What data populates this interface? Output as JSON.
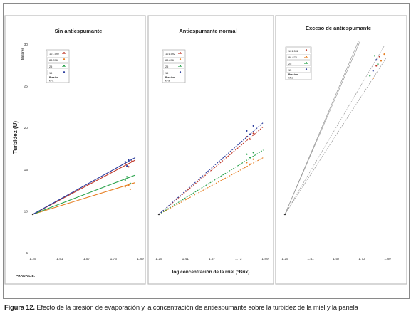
{
  "caption": {
    "label": "Figura 12.",
    "text": "Efecto de la presión de evaporación y la concentración de antiespumante sobre la turbidez de la miel y la panela"
  },
  "author_label": "PRADA L.E.",
  "colors": {
    "101.592": "#c0392b",
    "88.876": "#e67e22",
    "25": "#27a24a",
    "15": "#2c3e9e",
    "gray": "#9a9a9a"
  },
  "chart_data": [
    {
      "type": "line",
      "title": "Sin antiespumante",
      "ylabel": "Turbidez (U)",
      "yunit": "Millares",
      "xlabel": "",
      "x_ticks": [
        "1,25",
        "1,41",
        "1,57",
        "1,73",
        "1,89"
      ],
      "y_ticks": [
        "5",
        "10",
        "15",
        "20",
        "25",
        "30"
      ],
      "xlim": [
        1.25,
        1.89
      ],
      "ylim": [
        5,
        30
      ],
      "legend_title": "Presion kPa",
      "legend": [
        "101.592",
        "88.876",
        "25",
        "15"
      ],
      "series": [
        {
          "name": "101.592",
          "x": [
            1.25,
            1.86
          ],
          "y": [
            9.6,
            16.1
          ],
          "points": [
            [
              1.8,
              15.7
            ],
            [
              1.82,
              15.3
            ],
            [
              1.84,
              16.0
            ]
          ]
        },
        {
          "name": "88.876",
          "x": [
            1.25,
            1.86
          ],
          "y": [
            9.6,
            13.4
          ],
          "points": [
            [
              1.8,
              12.9
            ],
            [
              1.82,
              13.1
            ],
            [
              1.83,
              12.6
            ]
          ]
        },
        {
          "name": "25",
          "x": [
            1.25,
            1.86
          ],
          "y": [
            9.6,
            14.3
          ],
          "points": [
            [
              1.8,
              13.7
            ],
            [
              1.81,
              14.1
            ],
            [
              1.83,
              13.3
            ]
          ]
        },
        {
          "name": "15",
          "x": [
            1.25,
            1.86
          ],
          "y": [
            9.6,
            16.4
          ],
          "points": [
            [
              1.8,
              15.9
            ],
            [
              1.81,
              15.4
            ],
            [
              1.82,
              16.1
            ]
          ]
        }
      ]
    },
    {
      "type": "line",
      "title": "Antiespumante normal",
      "xlabel": "log concentración de la miel (°Brix)",
      "ylabel": "",
      "x_ticks": [
        "1,25",
        "1,41",
        "1,57",
        "1,73",
        "1,89"
      ],
      "xlim": [
        1.25,
        1.89
      ],
      "ylim": [
        5,
        30
      ],
      "legend_title": "Presion kPa",
      "legend": [
        "101.592",
        "88.876",
        "25",
        "15"
      ],
      "series": [
        {
          "name": "101.592",
          "x": [
            1.25,
            1.88
          ],
          "y": [
            9.6,
            20.1
          ],
          "points": [
            [
              1.78,
              18.9
            ],
            [
              1.8,
              18.6
            ],
            [
              1.82,
              19.3
            ]
          ]
        },
        {
          "name": "88.876",
          "x": [
            1.25,
            1.88
          ],
          "y": [
            9.6,
            16.4
          ],
          "points": [
            [
              1.78,
              15.8
            ],
            [
              1.8,
              15.6
            ],
            [
              1.82,
              16.2
            ]
          ]
        },
        {
          "name": "25",
          "x": [
            1.25,
            1.88
          ],
          "y": [
            9.6,
            17.3
          ],
          "points": [
            [
              1.78,
              16.8
            ],
            [
              1.8,
              16.4
            ],
            [
              1.82,
              17.0
            ]
          ]
        },
        {
          "name": "15",
          "x": [
            1.25,
            1.88
          ],
          "y": [
            9.6,
            20.6
          ],
          "points": [
            [
              1.78,
              19.6
            ],
            [
              1.8,
              19.2
            ],
            [
              1.82,
              20.2
            ]
          ]
        }
      ]
    },
    {
      "type": "line",
      "title": "Exceso de antiespumante",
      "xlabel": "",
      "ylabel": "",
      "x_ticks": [
        "1,25",
        "1,41",
        "1,57",
        "1,73",
        "1,89"
      ],
      "xlim": [
        1.25,
        1.89
      ],
      "ylim": [
        5,
        30
      ],
      "legend_title": "Presion kPa",
      "legend": [
        "101.592",
        "88.876",
        "25",
        "15"
      ],
      "series": [
        {
          "name": "101.592",
          "x": [
            1.25,
            1.71
          ],
          "y": [
            9.6,
            30.4
          ],
          "points": [
            [
              1.82,
              27.4
            ],
            [
              1.84,
              28.5
            ]
          ]
        },
        {
          "name": "88.876",
          "x": [
            1.25,
            1.88
          ],
          "y": [
            9.6,
            28.3
          ],
          "points": [
            [
              1.8,
              25.9
            ],
            [
              1.85,
              28.0
            ],
            [
              1.87,
              28.8
            ]
          ]
        },
        {
          "name": "25",
          "x": [
            1.25,
            1.87
          ],
          "y": [
            9.6,
            29.8
          ],
          "points": [
            [
              1.78,
              26.2
            ],
            [
              1.81,
              28.6
            ],
            [
              1.83,
              27.6
            ]
          ]
        },
        {
          "name": "15",
          "x": [
            1.25,
            1.72
          ],
          "y": [
            9.6,
            30.4
          ],
          "points": [
            [
              1.8,
              26.8
            ],
            [
              1.82,
              28.1
            ]
          ]
        }
      ]
    }
  ]
}
